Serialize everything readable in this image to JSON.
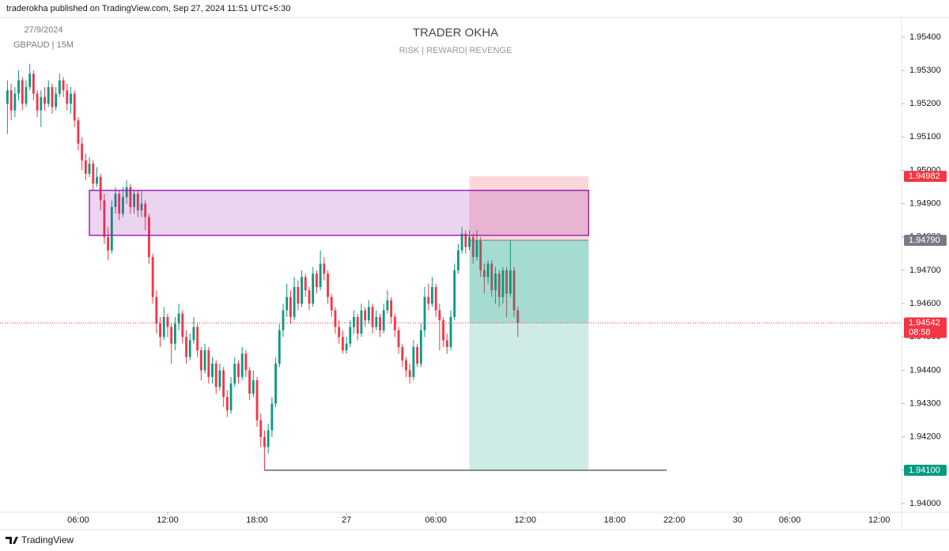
{
  "header": "traderokha published on TradingView.com, Sep 27, 2024 11:51 UTC+5:30",
  "footer": "TradingView",
  "chart_data": {
    "type": "candlestick",
    "title": "TRADER OKHA",
    "subtitle": "RISK | REWARD| REVENGE",
    "watermark": [
      "27/9/2024",
      "GBPAUD | 15M"
    ],
    "up_color": "#089981",
    "down_color": "#f23645",
    "grid": false,
    "ylim": [
      1.93974,
      1.95459
    ],
    "yticks": [
      {
        "value": 1.94,
        "label": "1.94000"
      },
      {
        "value": 1.941,
        "label": "1.94100"
      },
      {
        "value": 1.942,
        "label": "1.94200"
      },
      {
        "value": 1.943,
        "label": "1.94300"
      },
      {
        "value": 1.944,
        "label": "1.94400"
      },
      {
        "value": 1.945,
        "label": "1.94500"
      },
      {
        "value": 1.946,
        "label": "1.94600"
      },
      {
        "value": 1.947,
        "label": "1.94700"
      },
      {
        "value": 1.948,
        "label": "1.94800"
      },
      {
        "value": 1.949,
        "label": "1.94900"
      },
      {
        "value": 1.95,
        "label": "1.95000"
      },
      {
        "value": 1.951,
        "label": "1.95100"
      },
      {
        "value": 1.952,
        "label": "1.95200"
      },
      {
        "value": 1.953,
        "label": "1.95300"
      },
      {
        "value": 1.954,
        "label": "1.95400"
      }
    ],
    "xlim": [
      -2,
      240
    ],
    "xticks": [
      {
        "value": 19,
        "label": "06:00"
      },
      {
        "value": 43,
        "label": "12:00"
      },
      {
        "value": 67,
        "label": "18:00"
      },
      {
        "value": 91,
        "label": "27"
      },
      {
        "value": 115,
        "label": "06:00"
      },
      {
        "value": 139,
        "label": "12:00"
      },
      {
        "value": 163,
        "label": "18:00"
      },
      {
        "value": 179,
        "label": "22:00"
      },
      {
        "value": 196,
        "label": "30"
      },
      {
        "value": 210,
        "label": "06:00"
      },
      {
        "value": 234,
        "label": "12:00"
      }
    ],
    "ohlc": [
      [
        1.952,
        1.9527,
        1.9511,
        1.9524
      ],
      [
        1.9524,
        1.9526,
        1.9515,
        1.9518
      ],
      [
        1.9518,
        1.9525,
        1.9516,
        1.9523
      ],
      [
        1.9523,
        1.953,
        1.9521,
        1.9527
      ],
      [
        1.9527,
        1.9528,
        1.9518,
        1.952
      ],
      [
        1.952,
        1.9527,
        1.9519,
        1.9525
      ],
      [
        1.9525,
        1.9532,
        1.9524,
        1.9529
      ],
      [
        1.9529,
        1.953,
        1.9521,
        1.9523
      ],
      [
        1.9523,
        1.9524,
        1.9516,
        1.9518
      ],
      [
        1.9518,
        1.9524,
        1.9513,
        1.9522
      ],
      [
        1.9522,
        1.9525,
        1.9518,
        1.952
      ],
      [
        1.952,
        1.9527,
        1.9519,
        1.9525
      ],
      [
        1.9525,
        1.9526,
        1.9517,
        1.9519
      ],
      [
        1.9519,
        1.9525,
        1.9518,
        1.9523
      ],
      [
        1.9523,
        1.9529,
        1.9522,
        1.9527
      ],
      [
        1.9527,
        1.9528,
        1.9522,
        1.9524
      ],
      [
        1.9524,
        1.9526,
        1.9518,
        1.952
      ],
      [
        1.952,
        1.9525,
        1.9517,
        1.9523
      ],
      [
        1.9523,
        1.9524,
        1.9513,
        1.9515
      ],
      [
        1.9515,
        1.9516,
        1.9506,
        1.9508
      ],
      [
        1.9508,
        1.951,
        1.95,
        1.9503
      ],
      [
        1.9503,
        1.9505,
        1.9497,
        1.9499
      ],
      [
        1.9499,
        1.9504,
        1.9498,
        1.9502
      ],
      [
        1.9502,
        1.9503,
        1.9494,
        1.9496
      ],
      [
        1.9496,
        1.9501,
        1.9495,
        1.9498
      ],
      [
        1.9498,
        1.9499,
        1.9488,
        1.9491
      ],
      [
        1.9491,
        1.9493,
        1.9478,
        1.948
      ],
      [
        1.948,
        1.9483,
        1.9473,
        1.9476
      ],
      [
        1.9476,
        1.9491,
        1.9475,
        1.9489
      ],
      [
        1.9489,
        1.9495,
        1.9487,
        1.9493
      ],
      [
        1.9493,
        1.9494,
        1.9485,
        1.9487
      ],
      [
        1.9487,
        1.9495,
        1.9486,
        1.9492
      ],
      [
        1.9492,
        1.9497,
        1.949,
        1.9495
      ],
      [
        1.9495,
        1.9496,
        1.9487,
        1.9489
      ],
      [
        1.9489,
        1.9494,
        1.9487,
        1.9493
      ],
      [
        1.9493,
        1.9494,
        1.9486,
        1.9488
      ],
      [
        1.9488,
        1.9494,
        1.9486,
        1.949
      ],
      [
        1.949,
        1.9491,
        1.9482,
        1.9486
      ],
      [
        1.9486,
        1.9487,
        1.9472,
        1.9474
      ],
      [
        1.9474,
        1.9475,
        1.946,
        1.9462
      ],
      [
        1.9462,
        1.9464,
        1.9451,
        1.9454
      ],
      [
        1.9454,
        1.9456,
        1.9447,
        1.945
      ],
      [
        1.945,
        1.9459,
        1.9449,
        1.9456
      ],
      [
        1.9456,
        1.9457,
        1.945,
        1.9453
      ],
      [
        1.9453,
        1.9454,
        1.9442,
        1.9448
      ],
      [
        1.9448,
        1.9456,
        1.9446,
        1.9454
      ],
      [
        1.9454,
        1.946,
        1.9452,
        1.9457
      ],
      [
        1.9457,
        1.9458,
        1.9448,
        1.945
      ],
      [
        1.945,
        1.9452,
        1.9442,
        1.9444
      ],
      [
        1.9444,
        1.9451,
        1.9443,
        1.9449
      ],
      [
        1.9449,
        1.9456,
        1.9448,
        1.9453
      ],
      [
        1.9453,
        1.9454,
        1.9444,
        1.9446
      ],
      [
        1.9446,
        1.9447,
        1.9437,
        1.944
      ],
      [
        1.944,
        1.9448,
        1.9439,
        1.9446
      ],
      [
        1.9446,
        1.9447,
        1.9436,
        1.9438
      ],
      [
        1.9438,
        1.9444,
        1.9436,
        1.9442
      ],
      [
        1.9442,
        1.9443,
        1.9433,
        1.9435
      ],
      [
        1.9435,
        1.9442,
        1.9434,
        1.944
      ],
      [
        1.944,
        1.9441,
        1.9429,
        1.9432
      ],
      [
        1.9432,
        1.9434,
        1.9426,
        1.9428
      ],
      [
        1.9428,
        1.9438,
        1.9427,
        1.9436
      ],
      [
        1.9436,
        1.9444,
        1.9435,
        1.9442
      ],
      [
        1.9442,
        1.9443,
        1.9436,
        1.9438
      ],
      [
        1.9438,
        1.9447,
        1.9437,
        1.9445
      ],
      [
        1.9445,
        1.9446,
        1.9438,
        1.944
      ],
      [
        1.944,
        1.9441,
        1.9431,
        1.9433
      ],
      [
        1.9433,
        1.944,
        1.9432,
        1.9437
      ],
      [
        1.9437,
        1.9438,
        1.9423,
        1.9425
      ],
      [
        1.9425,
        1.9427,
        1.9417,
        1.942
      ],
      [
        1.942,
        1.9422,
        1.941,
        1.9417
      ],
      [
        1.9417,
        1.9424,
        1.9415,
        1.9422
      ],
      [
        1.9422,
        1.9432,
        1.942,
        1.943
      ],
      [
        1.943,
        1.9444,
        1.9429,
        1.9442
      ],
      [
        1.9442,
        1.9454,
        1.9441,
        1.9452
      ],
      [
        1.9452,
        1.946,
        1.945,
        1.9458
      ],
      [
        1.9458,
        1.9466,
        1.9456,
        1.9462
      ],
      [
        1.9462,
        1.9464,
        1.9454,
        1.9456
      ],
      [
        1.9456,
        1.9468,
        1.9455,
        1.9465
      ],
      [
        1.9465,
        1.9467,
        1.9458,
        1.946
      ],
      [
        1.946,
        1.947,
        1.9459,
        1.9468
      ],
      [
        1.9468,
        1.9469,
        1.9462,
        1.9464
      ],
      [
        1.9464,
        1.9465,
        1.9458,
        1.946
      ],
      [
        1.946,
        1.9471,
        1.9459,
        1.9469
      ],
      [
        1.9469,
        1.947,
        1.9463,
        1.9465
      ],
      [
        1.9465,
        1.9476,
        1.9464,
        1.9472
      ],
      [
        1.9472,
        1.9474,
        1.9467,
        1.9469
      ],
      [
        1.9469,
        1.947,
        1.946,
        1.9462
      ],
      [
        1.9462,
        1.9463,
        1.9456,
        1.9458
      ],
      [
        1.9458,
        1.9459,
        1.9451,
        1.9453
      ],
      [
        1.9453,
        1.9455,
        1.9448,
        1.945
      ],
      [
        1.945,
        1.9452,
        1.9445,
        1.9446
      ],
      [
        1.9446,
        1.945,
        1.9445,
        1.9448
      ],
      [
        1.9448,
        1.9455,
        1.9447,
        1.9453
      ],
      [
        1.9453,
        1.9458,
        1.9451,
        1.9456
      ],
      [
        1.9456,
        1.9457,
        1.9449,
        1.9451
      ],
      [
        1.9451,
        1.946,
        1.945,
        1.9458
      ],
      [
        1.9458,
        1.9459,
        1.9453,
        1.9455
      ],
      [
        1.9455,
        1.9461,
        1.9454,
        1.9459
      ],
      [
        1.9459,
        1.946,
        1.9451,
        1.9453
      ],
      [
        1.9453,
        1.9458,
        1.9452,
        1.9456
      ],
      [
        1.9456,
        1.9457,
        1.945,
        1.9452
      ],
      [
        1.9452,
        1.946,
        1.9451,
        1.9458
      ],
      [
        1.9458,
        1.9464,
        1.9457,
        1.9461
      ],
      [
        1.9461,
        1.9462,
        1.9454,
        1.9456
      ],
      [
        1.9456,
        1.9457,
        1.945,
        1.9452
      ],
      [
        1.9452,
        1.9453,
        1.9445,
        1.9447
      ],
      [
        1.9447,
        1.9448,
        1.9441,
        1.9443
      ],
      [
        1.9443,
        1.9444,
        1.9438,
        1.944
      ],
      [
        1.944,
        1.9442,
        1.9436,
        1.9438
      ],
      [
        1.9438,
        1.9449,
        1.9437,
        1.9447
      ],
      [
        1.9447,
        1.9448,
        1.9441,
        1.9442
      ],
      [
        1.9442,
        1.9454,
        1.9441,
        1.9452
      ],
      [
        1.9452,
        1.9465,
        1.945,
        1.9462
      ],
      [
        1.9462,
        1.9466,
        1.9458,
        1.946
      ],
      [
        1.946,
        1.9468,
        1.9459,
        1.9465
      ],
      [
        1.9465,
        1.9466,
        1.9456,
        1.9458
      ],
      [
        1.9458,
        1.946,
        1.9446,
        1.9455
      ],
      [
        1.9455,
        1.9456,
        1.9447,
        1.9449
      ],
      [
        1.9449,
        1.9451,
        1.9445,
        1.9447
      ],
      [
        1.9447,
        1.9458,
        1.9446,
        1.9456
      ],
      [
        1.9456,
        1.9472,
        1.9455,
        1.947
      ],
      [
        1.947,
        1.9478,
        1.9469,
        1.9476
      ],
      [
        1.9476,
        1.9483,
        1.9475,
        1.9481
      ],
      [
        1.9481,
        1.9482,
        1.9475,
        1.9477
      ],
      [
        1.9477,
        1.9482,
        1.9476,
        1.948
      ],
      [
        1.948,
        1.9481,
        1.9472,
        1.9474
      ],
      [
        1.9474,
        1.9482,
        1.9473,
        1.9479
      ],
      [
        1.9479,
        1.948,
        1.9468,
        1.947
      ],
      [
        1.947,
        1.9472,
        1.9463,
        1.9468
      ],
      [
        1.9468,
        1.9473,
        1.9466,
        1.9472
      ],
      [
        1.9472,
        1.9473,
        1.9462,
        1.9464
      ],
      [
        1.9464,
        1.9471,
        1.946,
        1.9469
      ],
      [
        1.9469,
        1.947,
        1.9459,
        1.9462
      ],
      [
        1.9462,
        1.9471,
        1.946,
        1.947
      ],
      [
        1.947,
        1.9471,
        1.9456,
        1.9463
      ],
      [
        1.9463,
        1.9479,
        1.9462,
        1.947
      ],
      [
        1.947,
        1.9471,
        1.9456,
        1.9458
      ],
      [
        1.9458,
        1.9459,
        1.945,
        1.94542
      ]
    ],
    "zone": {
      "x": [
        22,
        156
      ],
      "y": [
        1.94805,
        1.9494
      ],
      "color": "#9c27b0"
    },
    "position": {
      "x": [
        124,
        156
      ],
      "stop": 1.94982,
      "entry": {
        "value": 1.9479,
        "label": "1.94790"
      },
      "target": {
        "value": 1.941,
        "label": "1.94100"
      }
    },
    "target_line": {
      "x": [
        69,
        177
      ]
    },
    "last_price": 1.94542,
    "countdown": "08:58"
  }
}
